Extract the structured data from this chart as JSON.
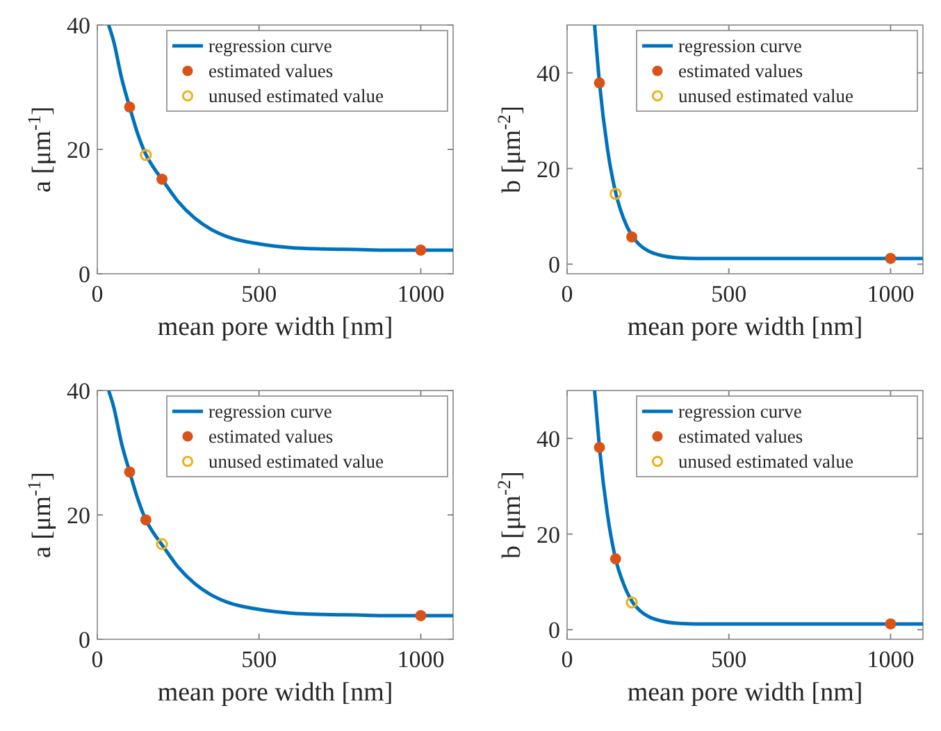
{
  "chart_data": [
    {
      "type": "line",
      "xlabel": "mean pore width [nm]",
      "ylabel": "a [μm$^{-1}$]",
      "xlim": [
        0,
        1100
      ],
      "xticks": [
        0,
        500,
        1000
      ],
      "ylim": [
        0,
        40
      ],
      "yticks": [
        0,
        20,
        40
      ],
      "grid": false,
      "legend": "top right",
      "series": [
        {
          "name": "regression curve",
          "type": "line",
          "marker": "none",
          "color": "#0072bd",
          "x": [
            35,
            50,
            75,
            100,
            125,
            150,
            175,
            200,
            250,
            300,
            350,
            400,
            500,
            600,
            700,
            800,
            900,
            1000,
            1100
          ],
          "values": [
            40,
            37.5,
            31.5,
            26.8,
            22.5,
            19.2,
            17,
            15.2,
            11.6,
            9,
            7.2,
            6,
            4.8,
            4.2,
            4,
            3.9,
            3.8,
            3.8,
            3.8
          ]
        },
        {
          "name": "estimated values",
          "type": "scatter",
          "marker": "circle",
          "color": "#d95319",
          "x": [
            100,
            200,
            1000
          ],
          "values": [
            26.8,
            15.2,
            3.8
          ]
        },
        {
          "name": "unused estimated value",
          "type": "scatter",
          "marker": "circle",
          "color": "#edb120",
          "x": [
            150
          ],
          "values": [
            19.1
          ]
        }
      ]
    },
    {
      "type": "line",
      "xlabel": "mean pore width [nm]",
      "ylabel": "b [μm$^{-2}$]",
      "xlim": [
        0,
        1100
      ],
      "xticks": [
        0,
        500,
        1000
      ],
      "ylim": [
        -2,
        50
      ],
      "yticks": [
        0,
        20,
        40
      ],
      "grid": false,
      "legend": "top right",
      "series": [
        {
          "name": "regression curve",
          "type": "line",
          "marker": "none",
          "color": "#0072bd",
          "x": [
            85,
            100,
            125,
            150,
            175,
            200,
            225,
            250,
            300,
            350,
            400,
            500,
            700,
            900,
            1100
          ],
          "values": [
            50,
            38,
            24,
            15,
            9.5,
            6,
            4,
            2.8,
            1.7,
            1.3,
            1.2,
            1.2,
            1.2,
            1.2,
            1.2
          ]
        },
        {
          "name": "estimated values",
          "type": "scatter",
          "marker": "circle",
          "color": "#d95319",
          "x": [
            100,
            200,
            1000
          ],
          "values": [
            37.9,
            5.7,
            1.2
          ]
        },
        {
          "name": "unused estimated value",
          "type": "scatter",
          "marker": "circle",
          "color": "#edb120",
          "x": [
            150
          ],
          "values": [
            14.7
          ]
        }
      ]
    },
    {
      "type": "line",
      "xlabel": "mean pore width [nm]",
      "ylabel": "a [μm$^{-1}$]",
      "xlim": [
        0,
        1100
      ],
      "xticks": [
        0,
        500,
        1000
      ],
      "ylim": [
        0,
        40
      ],
      "yticks": [
        0,
        20,
        40
      ],
      "grid": false,
      "legend": "top right",
      "series": [
        {
          "name": "regression curve",
          "type": "line",
          "marker": "none",
          "color": "#0072bd",
          "x": [
            35,
            50,
            75,
            100,
            125,
            150,
            175,
            200,
            250,
            300,
            350,
            400,
            500,
            600,
            700,
            800,
            900,
            1000,
            1100
          ],
          "values": [
            40,
            37.5,
            31.5,
            26.9,
            22.6,
            19.2,
            17,
            15.2,
            11.6,
            9,
            7.2,
            6,
            4.8,
            4.2,
            4,
            3.9,
            3.8,
            3.8,
            3.8
          ]
        },
        {
          "name": "estimated values",
          "type": "scatter",
          "marker": "circle",
          "color": "#d95319",
          "x": [
            100,
            150,
            1000
          ],
          "values": [
            26.9,
            19.2,
            3.8
          ]
        },
        {
          "name": "unused estimated value",
          "type": "scatter",
          "marker": "circle",
          "color": "#edb120",
          "x": [
            200
          ],
          "values": [
            15.3
          ]
        }
      ]
    },
    {
      "type": "line",
      "xlabel": "mean pore width [nm]",
      "ylabel": "b [μm$^{-2}$]",
      "xlim": [
        0,
        1100
      ],
      "xticks": [
        0,
        500,
        1000
      ],
      "ylim": [
        -2,
        50
      ],
      "yticks": [
        0,
        20,
        40
      ],
      "grid": false,
      "legend": "top right",
      "series": [
        {
          "name": "regression curve",
          "type": "line",
          "marker": "none",
          "color": "#0072bd",
          "x": [
            85,
            100,
            125,
            150,
            175,
            200,
            225,
            250,
            300,
            350,
            400,
            500,
            700,
            900,
            1100
          ],
          "values": [
            50,
            38.1,
            24,
            14.8,
            9.5,
            6,
            4,
            2.8,
            1.7,
            1.3,
            1.2,
            1.2,
            1.2,
            1.2,
            1.2
          ]
        },
        {
          "name": "estimated values",
          "type": "scatter",
          "marker": "circle",
          "color": "#d95319",
          "x": [
            100,
            150,
            1000
          ],
          "values": [
            38.1,
            14.8,
            1.2
          ]
        },
        {
          "name": "unused estimated value",
          "type": "scatter",
          "marker": "circle",
          "color": "#edb120",
          "x": [
            200
          ],
          "values": [
            5.7
          ]
        }
      ]
    }
  ]
}
